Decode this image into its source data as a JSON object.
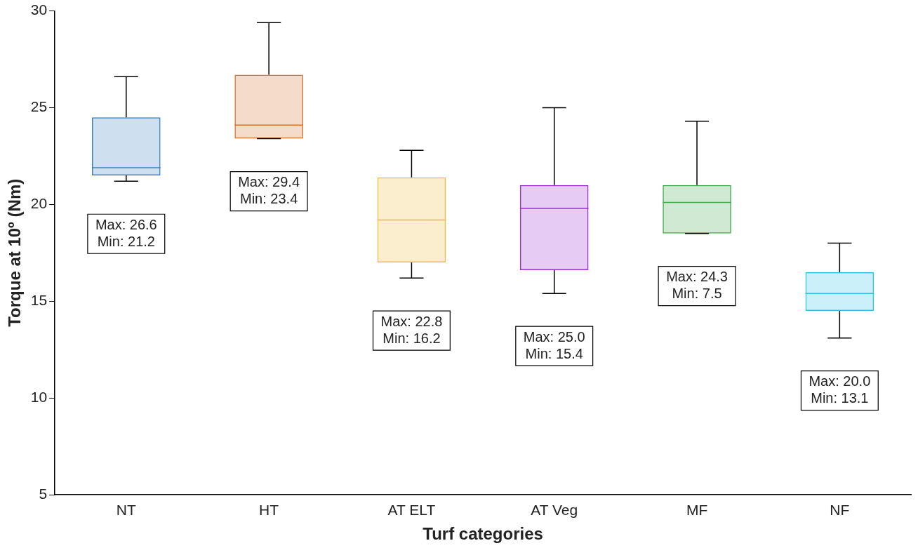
{
  "chart_data": {
    "type": "box",
    "xlabel": "Turf categories",
    "ylabel": "Torque at 10º (Nm)",
    "categories": [
      "NT",
      "HT",
      "AT ELT",
      "AT Veg",
      "MF",
      "NF"
    ],
    "colors": [
      "#3a7fc4",
      "#d2702c",
      "#eebb3a",
      "#9a2fd6",
      "#3fa94a",
      "#2fc3e6"
    ],
    "boxes": [
      {
        "low": 21.2,
        "q1": 21.5,
        "median": 21.9,
        "q3": 24.5,
        "high": 26.6
      },
      {
        "low": 23.4,
        "q1": 23.4,
        "median": 24.1,
        "q3": 26.7,
        "high": 29.4
      },
      {
        "low": 16.2,
        "q1": 17.0,
        "median": 19.2,
        "q3": 21.4,
        "high": 22.8
      },
      {
        "low": 15.4,
        "q1": 16.6,
        "median": 19.8,
        "q3": 21.0,
        "high": 25.0
      },
      {
        "low": 18.5,
        "q1": 18.5,
        "median": 20.1,
        "q3": 21.0,
        "high": 24.3
      },
      {
        "low": 13.1,
        "q1": 14.5,
        "median": 15.4,
        "q3": 16.5,
        "high": 18.0
      }
    ],
    "ylim": [
      5,
      30
    ],
    "yticks": [
      5,
      10,
      15,
      20,
      25,
      30
    ],
    "grid": false,
    "legend": false,
    "annotations": [
      "Max: 26.6\nMin: 21.2",
      "Max: 29.4\nMin: 23.4",
      "Max: 22.8\nMin: 16.2",
      "Max: 25.0\nMin: 15.4",
      "Max: 24.3\nMin: 7.5",
      "Max: 20.0\nMin: 13.1"
    ]
  }
}
